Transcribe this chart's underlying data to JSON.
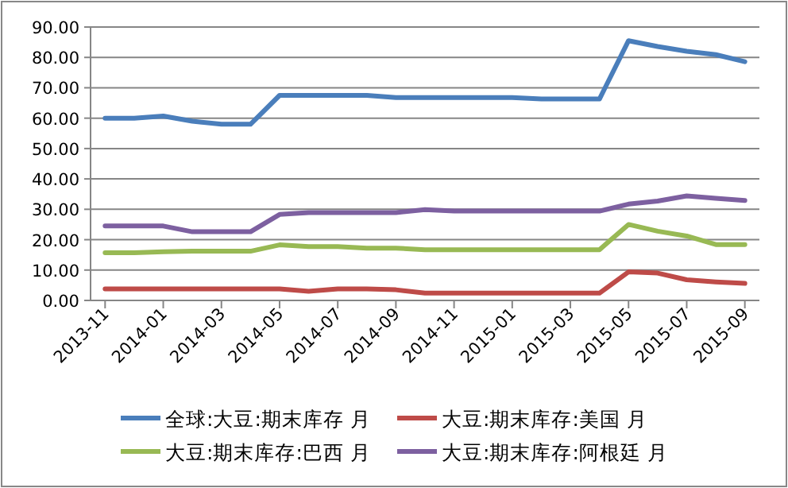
{
  "chart_data": {
    "type": "line",
    "categories": [
      "2013-11",
      null,
      "2014-01",
      null,
      "2014-03",
      null,
      "2014-05",
      null,
      "2014-07",
      null,
      "2014-09",
      null,
      "2014-11",
      null,
      "2015-01",
      null,
      "2015-03",
      null,
      "2015-05",
      null,
      "2015-07",
      null,
      "2015-09"
    ],
    "series": [
      {
        "name": "全球:大豆:期末库存 月",
        "color": "#4a7ebb",
        "values": [
          60.0,
          60.0,
          60.7,
          59.0,
          58.0,
          58.0,
          67.5,
          67.5,
          67.5,
          67.5,
          66.8,
          66.8,
          66.8,
          66.8,
          66.8,
          66.3,
          66.3,
          66.3,
          85.5,
          83.6,
          82.0,
          80.9,
          78.6
        ]
      },
      {
        "name": "大豆:期末库存:美国 月",
        "color": "#be4b48",
        "values": [
          3.8,
          3.8,
          3.8,
          3.8,
          3.8,
          3.8,
          3.8,
          3.0,
          3.8,
          3.8,
          3.5,
          2.4,
          2.4,
          2.4,
          2.4,
          2.4,
          2.4,
          2.4,
          9.4,
          9.0,
          6.8,
          6.1,
          5.6
        ]
      },
      {
        "name": "大豆:期末库存:巴西 月",
        "color": "#98b954",
        "values": [
          15.7,
          15.7,
          16.0,
          16.2,
          16.2,
          16.2,
          18.3,
          17.7,
          17.7,
          17.2,
          17.2,
          16.7,
          16.7,
          16.7,
          16.7,
          16.7,
          16.7,
          16.7,
          25.0,
          22.8,
          21.2,
          18.4,
          18.4
        ]
      },
      {
        "name": "大豆:期末库存:阿根廷 月",
        "color": "#7d60a0",
        "values": [
          24.5,
          24.5,
          24.5,
          22.6,
          22.6,
          22.6,
          28.3,
          28.9,
          28.9,
          28.9,
          28.9,
          29.9,
          29.4,
          29.4,
          29.4,
          29.4,
          29.4,
          29.4,
          31.7,
          32.7,
          34.4,
          33.6,
          32.9
        ]
      }
    ],
    "ylim": [
      0,
      90
    ],
    "yticks": [
      {
        "value": 0,
        "label": "0.00"
      },
      {
        "value": 10,
        "label": "10.00"
      },
      {
        "value": 20,
        "label": "20.00"
      },
      {
        "value": 30,
        "label": "30.00"
      },
      {
        "value": 40,
        "label": "40.00"
      },
      {
        "value": 50,
        "label": "50.00"
      },
      {
        "value": 60,
        "label": "60.00"
      },
      {
        "value": 70,
        "label": "70.00"
      },
      {
        "value": 80,
        "label": "80.00"
      },
      {
        "value": 90,
        "label": "90.00"
      }
    ],
    "grid": "y",
    "legend": "bottom",
    "line_style": "solid",
    "marker": "none"
  }
}
